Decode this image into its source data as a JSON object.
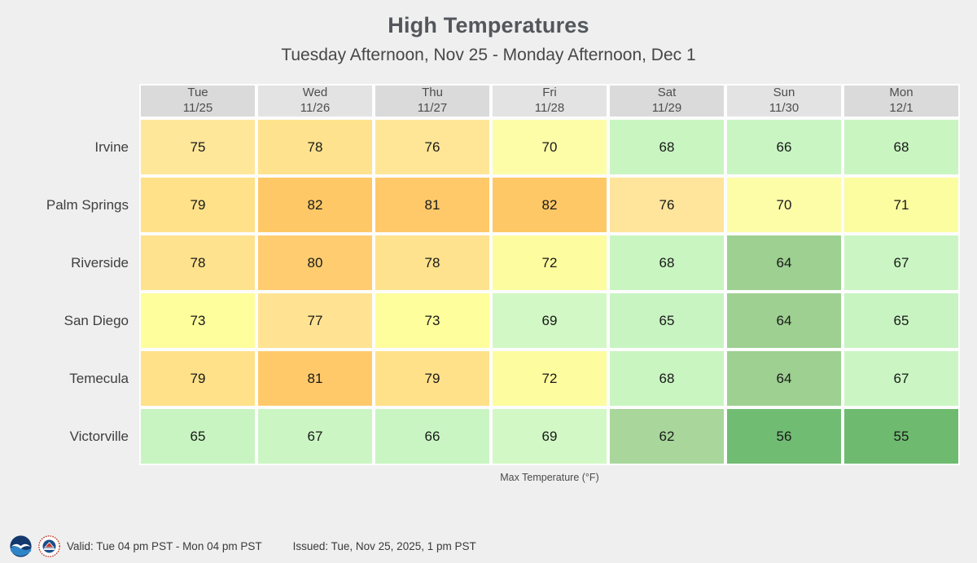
{
  "title": "High Temperatures",
  "subtitle": "Tuesday Afternoon, Nov 25 - Monday Afternoon, Dec 1",
  "caption": "Max Temperature (°F)",
  "footer": {
    "valid": "Valid: Tue 04 pm PST - Mon 04 pm PST",
    "issued": "Issued: Tue, Nov 25, 2025, 1 pm PST",
    "noaa_logo": "noaa-logo",
    "nws_logo": "nws-logo"
  },
  "columns": [
    {
      "day": "Tue",
      "date": "11/25"
    },
    {
      "day": "Wed",
      "date": "11/26"
    },
    {
      "day": "Thu",
      "date": "11/27"
    },
    {
      "day": "Fri",
      "date": "11/28"
    },
    {
      "day": "Sat",
      "date": "11/29"
    },
    {
      "day": "Sun",
      "date": "11/30"
    },
    {
      "day": "Mon",
      "date": "12/1"
    }
  ],
  "rows": [
    {
      "city": "Irvine",
      "values": [
        75,
        78,
        76,
        70,
        68,
        66,
        68
      ],
      "colors": [
        "#FFE79A",
        "#FFE28D",
        "#FFE697",
        "#FDFDA8",
        "#C9F5C1",
        "#C9F5C3",
        "#C9F5C1"
      ]
    },
    {
      "city": "Palm Springs",
      "values": [
        79,
        82,
        81,
        82,
        76,
        70,
        71
      ],
      "colors": [
        "#FFE189",
        "#FFC866",
        "#FFC96A",
        "#FFC866",
        "#FFE49C",
        "#FDFDA8",
        "#FCFCA0"
      ]
    },
    {
      "city": "Riverside",
      "values": [
        78,
        80,
        78,
        72,
        68,
        64,
        67
      ],
      "colors": [
        "#FFE28D",
        "#FFCC70",
        "#FFE28D",
        "#FDFC9E",
        "#C9F5C1",
        "#9DD091",
        "#CBF6C4"
      ]
    },
    {
      "city": "San Diego",
      "values": [
        73,
        77,
        73,
        69,
        65,
        64,
        65
      ],
      "colors": [
        "#FEFE9D",
        "#FFE392",
        "#FEFE9D",
        "#D2F8C5",
        "#C8F4C2",
        "#9DD091",
        "#C8F4C2"
      ]
    },
    {
      "city": "Temecula",
      "values": [
        79,
        81,
        79,
        72,
        68,
        64,
        67
      ],
      "colors": [
        "#FFE189",
        "#FFC96A",
        "#FFE189",
        "#FDFC9E",
        "#C9F5C1",
        "#9DD091",
        "#CBF6C4"
      ]
    },
    {
      "city": "Victorville",
      "values": [
        65,
        67,
        66,
        69,
        62,
        56,
        55
      ],
      "colors": [
        "#C8F4C2",
        "#CBF6C4",
        "#C9F5C3",
        "#D2F8C5",
        "#A8D69B",
        "#70BC73",
        "#6EBB70"
      ]
    }
  ],
  "palette": {
    "background": "#efefef",
    "header_base": "#dadada",
    "header_alt": "#e3e3e3",
    "cell_border": "#fdfdfd",
    "warmest": "#FFC866",
    "warm": "#FFE189",
    "mild": "#FDFD9F",
    "cool": "#C9F5C2",
    "cold": "#9DD091",
    "coldest": "#6EBB70"
  },
  "chart_data": {
    "type": "heatmap",
    "title": "High Temperatures",
    "subtitle": "Tuesday Afternoon, Nov 25 - Monday Afternoon, Dec 1",
    "x_categories": [
      "Tue 11/25",
      "Wed 11/26",
      "Thu 11/27",
      "Fri 11/28",
      "Sat 11/29",
      "Sun 11/30",
      "Mon 12/1"
    ],
    "y_categories": [
      "Irvine",
      "Palm Springs",
      "Riverside",
      "San Diego",
      "Temecula",
      "Victorville"
    ],
    "values": [
      [
        75,
        78,
        76,
        70,
        68,
        66,
        68
      ],
      [
        79,
        82,
        81,
        82,
        76,
        70,
        71
      ],
      [
        78,
        80,
        78,
        72,
        68,
        64,
        67
      ],
      [
        73,
        77,
        73,
        69,
        65,
        64,
        65
      ],
      [
        79,
        81,
        79,
        72,
        68,
        64,
        67
      ],
      [
        65,
        67,
        66,
        69,
        62,
        56,
        55
      ]
    ],
    "value_label": "Max Temperature (°F)",
    "value_range": [
      55,
      82
    ],
    "color_rule": "green (cold) through pale yellow to orange (warm)",
    "legend": "none",
    "grid": "white gaps between cells"
  }
}
